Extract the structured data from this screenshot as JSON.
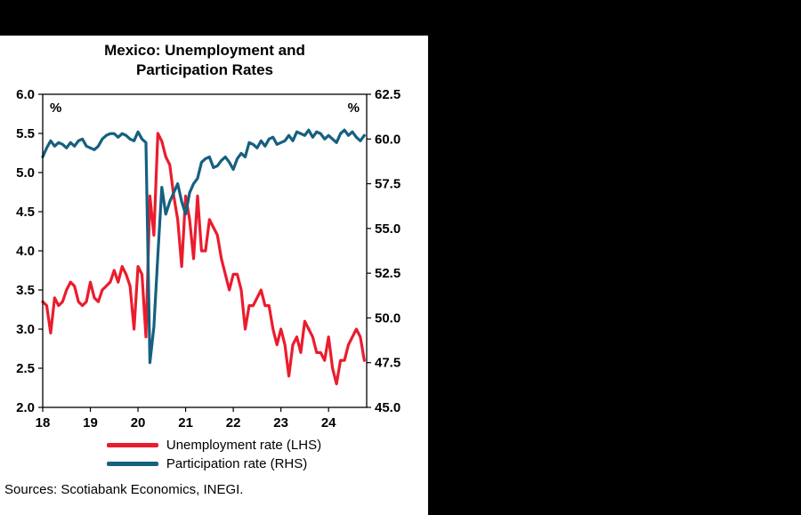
{
  "header": {
    "title_line1": "Mexico: Unemployment and",
    "title_line2": "Participation Rates"
  },
  "source": "Sources: Scotiabank Economics, INEGI.",
  "chart_data": {
    "type": "line",
    "title": "Mexico: Unemployment and Participation Rates",
    "x_start_year": 2018,
    "x_frequency": "monthly",
    "x_ticks": [
      18,
      19,
      20,
      21,
      22,
      23,
      24
    ],
    "left_axis": {
      "label": "%",
      "min": 2.0,
      "max": 6.0,
      "step": 0.5
    },
    "right_axis": {
      "label": "%",
      "min": 45.0,
      "max": 62.5,
      "step": 2.5
    },
    "grid": false,
    "legend_position": "bottom",
    "series": [
      {
        "name": "Unemployment rate (LHS)",
        "axis": "left",
        "color": "#EB1C2D",
        "values": [
          3.35,
          3.3,
          2.95,
          3.4,
          3.3,
          3.35,
          3.5,
          3.6,
          3.55,
          3.35,
          3.3,
          3.35,
          3.6,
          3.4,
          3.35,
          3.5,
          3.55,
          3.6,
          3.75,
          3.6,
          3.8,
          3.7,
          3.55,
          3.0,
          3.8,
          3.7,
          2.9,
          4.7,
          4.2,
          5.5,
          5.4,
          5.2,
          5.1,
          4.7,
          4.4,
          3.8,
          4.7,
          4.4,
          3.9,
          4.7,
          4.0,
          4.0,
          4.4,
          4.3,
          4.2,
          3.9,
          3.7,
          3.5,
          3.7,
          3.7,
          3.5,
          3.0,
          3.3,
          3.3,
          3.4,
          3.5,
          3.3,
          3.3,
          3.0,
          2.8,
          3.0,
          2.8,
          2.4,
          2.8,
          2.9,
          2.7,
          3.1,
          3.0,
          2.9,
          2.7,
          2.7,
          2.6,
          2.9,
          2.5,
          2.3,
          2.6,
          2.6,
          2.8,
          2.9,
          3.0,
          2.9,
          2.6
        ]
      },
      {
        "name": "Participation rate (RHS)",
        "axis": "right",
        "color": "#166080",
        "values": [
          59.0,
          59.5,
          59.9,
          59.6,
          59.8,
          59.7,
          59.5,
          59.8,
          59.6,
          59.9,
          60.0,
          59.6,
          59.5,
          59.4,
          59.6,
          60.0,
          60.2,
          60.3,
          60.3,
          60.1,
          60.3,
          60.2,
          60.0,
          59.9,
          60.4,
          60.0,
          59.8,
          47.5,
          49.5,
          53.5,
          57.3,
          55.8,
          56.5,
          57.0,
          57.5,
          56.5,
          55.8,
          57.0,
          57.5,
          57.8,
          58.7,
          58.9,
          59.0,
          58.4,
          58.5,
          58.8,
          59.0,
          58.7,
          58.3,
          58.9,
          59.2,
          59.0,
          59.8,
          59.7,
          59.5,
          59.9,
          59.6,
          60.0,
          60.1,
          59.7,
          59.8,
          59.9,
          60.2,
          59.9,
          60.4,
          60.3,
          60.2,
          60.5,
          60.1,
          60.4,
          60.3,
          60.0,
          60.2,
          60.0,
          59.8,
          60.3,
          60.5,
          60.2,
          60.4,
          60.1,
          59.9,
          60.2
        ]
      }
    ]
  }
}
